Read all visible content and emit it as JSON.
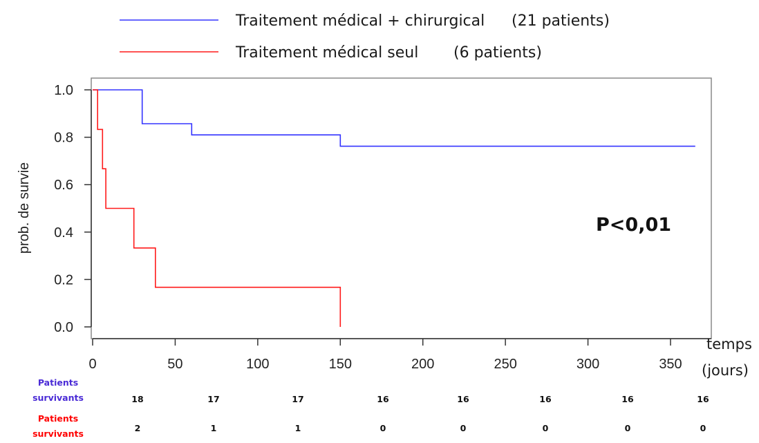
{
  "legend": {
    "blue_label": "Traitement médical + chirurgical",
    "blue_count": "(21 patients)",
    "red_label": "Traitement médical seul",
    "red_count": "(6 patients)"
  },
  "p_value": "P<0,01",
  "x_unit_line1": "temps",
  "x_unit_line2": "(jours)",
  "risk_table": {
    "blue_label_line1": "Patients",
    "blue_label_line2": "survivants",
    "red_label_line1": "Patients",
    "red_label_line2": "survivants",
    "blue_counts": [
      "18",
      "17",
      "17",
      "16",
      "16",
      "16",
      "16",
      "16"
    ],
    "red_counts": [
      "2",
      "1",
      "1",
      "0",
      "0",
      "0",
      "0",
      "0"
    ]
  },
  "colors": {
    "blue": "#3333ff",
    "red": "#ff1a1a",
    "risk_blue": "#4a2bd6",
    "risk_red": "#ff0000"
  },
  "chart_data": {
    "type": "line",
    "title": "",
    "xlabel": "",
    "ylabel": "prob. de survie",
    "xlim": [
      0,
      365
    ],
    "ylim": [
      0,
      1
    ],
    "x_ticks": [
      0,
      50,
      100,
      150,
      200,
      250,
      300,
      350
    ],
    "y_ticks": [
      "0.0",
      "0.2",
      "0.4",
      "0.6",
      "0.8",
      "1.0"
    ],
    "grid": false,
    "legend_position": "top",
    "series": [
      {
        "name": "Traitement médical + chirurgical (21 patients)",
        "color": "#3333ff",
        "step": true,
        "x": [
          0,
          30,
          30,
          60,
          60,
          150,
          150,
          365
        ],
        "y": [
          1.0,
          1.0,
          0.857,
          0.857,
          0.81,
          0.81,
          0.762,
          0.762
        ]
      },
      {
        "name": "Traitement médical seul (6 patients)",
        "color": "#ff1a1a",
        "step": true,
        "x": [
          0,
          3,
          3,
          6,
          6,
          8,
          8,
          25,
          25,
          38,
          38,
          150,
          150
        ],
        "y": [
          1.0,
          1.0,
          0.833,
          0.833,
          0.667,
          0.667,
          0.5,
          0.5,
          0.333,
          0.333,
          0.167,
          0.167,
          0.0
        ]
      }
    ]
  }
}
